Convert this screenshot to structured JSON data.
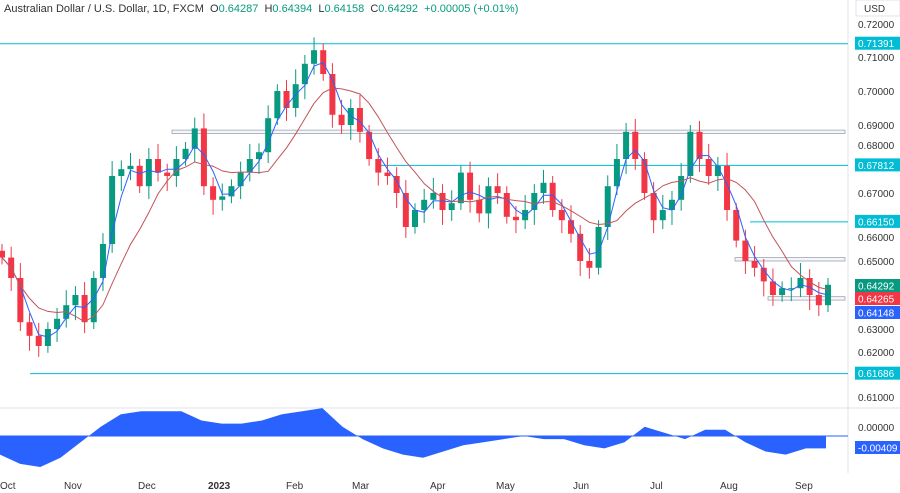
{
  "header": {
    "title": "Australian Dollar / U.S. Dollar, 1D, FXCM",
    "o_label": "O",
    "o": "0.64287",
    "h_label": "H",
    "h": "0.64394",
    "l_label": "L",
    "l": "0.64158",
    "c_label": "C",
    "c": "0.64292",
    "change": "+0.00005 (+0.01%)"
  },
  "axis": {
    "currency": "USD",
    "ticks": [
      "0.72000",
      "0.71000",
      "0.70000",
      "0.69000",
      "0.68000",
      "0.67000",
      "0.66000",
      "0.65000",
      "0.63000",
      "0.62000",
      "0.61000"
    ],
    "osc_tick": "0.00000"
  },
  "badges": {
    "level1": "0.71391",
    "level2": "0.67812",
    "level3": "0.66150",
    "last": "0.64292",
    "ma_red": "0.64265",
    "ma_blue": "0.64148",
    "level4": "0.61686",
    "osc": "-0.00409"
  },
  "colors": {
    "up": "#089981",
    "down": "#f23645",
    "ma_fast": "#2962ff",
    "ma_slow": "#c2545a",
    "level": "#00bcd4",
    "osc": "#2962ff"
  },
  "chart_data": {
    "type": "candlestick",
    "title": "Australian Dollar / U.S. Dollar, 1D, FXCM",
    "ylim": [
      0.605,
      0.72
    ],
    "x_labels": [
      "Oct",
      "Nov",
      "Dec",
      "2023",
      "Feb",
      "Mar",
      "Apr",
      "May",
      "Jun",
      "Jul",
      "Aug",
      "Sep"
    ],
    "closes": [
      0.651,
      0.645,
      0.632,
      0.628,
      0.625,
      0.63,
      0.633,
      0.637,
      0.64,
      0.632,
      0.645,
      0.655,
      0.675,
      0.677,
      0.678,
      0.672,
      0.68,
      0.676,
      0.675,
      0.68,
      0.683,
      0.689,
      0.672,
      0.668,
      0.669,
      0.672,
      0.676,
      0.68,
      0.682,
      0.692,
      0.7,
      0.695,
      0.702,
      0.708,
      0.712,
      0.705,
      0.693,
      0.69,
      0.695,
      0.688,
      0.68,
      0.676,
      0.675,
      0.67,
      0.66,
      0.665,
      0.668,
      0.67,
      0.665,
      0.667,
      0.676,
      0.668,
      0.664,
      0.672,
      0.67,
      0.663,
      0.662,
      0.665,
      0.67,
      0.673,
      0.665,
      0.662,
      0.658,
      0.65,
      0.648,
      0.66,
      0.672,
      0.68,
      0.688,
      0.68,
      0.67,
      0.662,
      0.665,
      0.668,
      0.675,
      0.688,
      0.68,
      0.675,
      0.678,
      0.665,
      0.656,
      0.65,
      0.648,
      0.644,
      0.64,
      0.642,
      0.642,
      0.645,
      0.64,
      0.637,
      0.643
    ],
    "horizontal_levels": [
      0.71391,
      0.67812,
      0.6615,
      0.61686
    ],
    "zones": [
      [
        0.6875,
        0.6885
      ],
      [
        0.65,
        0.651
      ],
      [
        0.6385,
        0.6395
      ]
    ],
    "oscillator": [
      -0.006,
      -0.009,
      -0.01,
      -0.007,
      -0.002,
      0.003,
      0.007,
      0.008,
      0.008,
      0.008,
      0.005,
      0.004,
      0.004,
      0.005,
      0.007,
      0.008,
      0.009,
      0.003,
      -0.001,
      -0.004,
      -0.006,
      -0.007,
      -0.005,
      -0.003,
      -0.002,
      -0.001,
      0.0,
      -0.001,
      -0.001,
      -0.003,
      -0.004,
      -0.002,
      0.003,
      0.001,
      -0.001,
      0.002,
      0.002,
      -0.002,
      -0.005,
      -0.006,
      -0.004,
      -0.004
    ]
  }
}
